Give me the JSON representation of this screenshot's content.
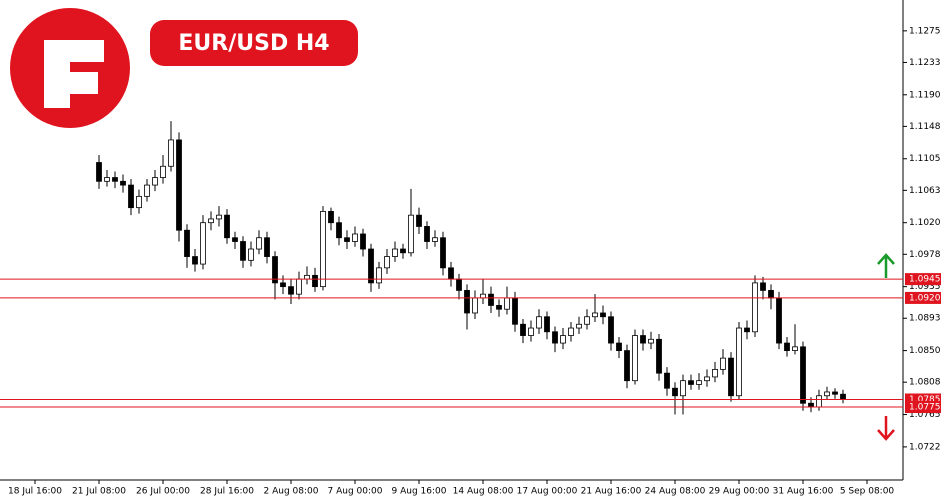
{
  "chart_data": {
    "type": "candlestick",
    "title": "EUR/USD H4",
    "categories": [
      "18 Jul 16:00",
      null,
      null,
      null,
      null,
      null,
      null,
      null,
      "21 Jul 08:00",
      null,
      null,
      null,
      null,
      null,
      null,
      null,
      "26 Jul 00:00",
      null,
      null,
      null,
      null,
      null,
      null,
      null,
      "28 Jul 16:00",
      null,
      null,
      null,
      null,
      null,
      null,
      null,
      "2 Aug 08:00",
      null,
      null,
      null,
      null,
      null,
      null,
      null,
      "7 Aug 00:00",
      null,
      null,
      null,
      null,
      null,
      null,
      null,
      "9 Aug 16:00",
      null,
      null,
      null,
      null,
      null,
      null,
      null,
      "14 Aug 08:00",
      null,
      null,
      null,
      null,
      null,
      null,
      null,
      "17 Aug 00:00",
      null,
      null,
      null,
      null,
      null,
      null,
      null,
      "21 Aug 16:00",
      null,
      null,
      null,
      null,
      null,
      null,
      null,
      "24 Aug 08:00",
      null,
      null,
      null,
      null,
      null,
      null,
      null,
      "29 Aug 00:00",
      null,
      null,
      null,
      null,
      null,
      null,
      null,
      "31 Aug 16:00",
      null,
      null,
      null,
      null,
      null,
      null,
      null,
      "5 Sep 08:00"
    ],
    "open": [
      null,
      null,
      null,
      null,
      null,
      null,
      null,
      null,
      1.11,
      1.1075,
      1.108,
      1.1075,
      1.107,
      1.104,
      1.1055,
      1.107,
      1.108,
      1.1095,
      1.113,
      1.101,
      1.0975,
      1.0965,
      1.102,
      1.1025,
      1.103,
      1.1,
      1.0995,
      1.097,
      1.0985,
      1.1,
      1.0975,
      1.094,
      1.0935,
      1.0925,
      1.0945,
      1.095,
      1.0935,
      1.1035,
      1.102,
      1.1,
      1.0995,
      1.1005,
      1.0985,
      1.094,
      1.096,
      1.0975,
      1.0985,
      1.098,
      1.103,
      1.1015,
      1.0995,
      1.1,
      1.096,
      1.0945,
      1.093,
      1.09,
      1.092,
      1.0925,
      1.091,
      1.0905,
      1.092,
      1.0885,
      1.087,
      1.088,
      1.0895,
      1.0875,
      1.086,
      1.087,
      1.088,
      1.0885,
      1.0895,
      1.09,
      1.0895,
      1.086,
      1.085,
      1.081,
      1.087,
      1.086,
      1.0865,
      1.082,
      1.08,
      1.079,
      1.081,
      1.0805,
      1.081,
      1.0815,
      1.0825,
      1.084,
      1.079,
      1.088,
      1.0875,
      1.094,
      1.093,
      1.092,
      1.086,
      1.085,
      1.0855,
      1.078,
      1.0775,
      1.079,
      1.0795,
      1.0792,
      null,
      null,
      null
    ],
    "high": [
      null,
      null,
      null,
      null,
      null,
      null,
      null,
      null,
      1.111,
      1.109,
      1.1088,
      1.1084,
      1.1078,
      1.1064,
      1.1078,
      1.109,
      1.111,
      1.1155,
      1.114,
      1.1018,
      1.0985,
      1.103,
      1.1035,
      1.1042,
      1.1038,
      1.1008,
      1.1002,
      1.0995,
      1.101,
      1.1008,
      1.0982,
      1.095,
      1.0945,
      1.0955,
      1.0962,
      1.096,
      1.1042,
      1.104,
      1.1028,
      1.101,
      1.1015,
      1.1012,
      1.0992,
      1.0968,
      1.0985,
      1.0995,
      1.0992,
      1.1065,
      1.104,
      1.1022,
      1.101,
      1.1008,
      1.0968,
      1.0952,
      1.0938,
      1.093,
      1.0945,
      1.0935,
      1.0918,
      1.0935,
      1.0928,
      1.0892,
      1.089,
      1.0905,
      1.0902,
      1.0882,
      1.088,
      1.0888,
      1.0895,
      1.0905,
      1.0925,
      1.091,
      1.0902,
      1.0868,
      1.0858,
      1.0878,
      1.0878,
      1.0875,
      1.0872,
      1.0828,
      1.0808,
      1.0818,
      1.0818,
      1.082,
      1.0825,
      1.0835,
      1.0852,
      1.0848,
      1.0888,
      1.089,
      1.095,
      1.0948,
      1.0938,
      1.0928,
      1.0868,
      1.0885,
      1.0862,
      1.0788,
      1.0798,
      1.0802,
      1.08,
      1.0798,
      null,
      null,
      null
    ],
    "low": [
      null,
      null,
      null,
      null,
      null,
      null,
      null,
      null,
      1.1065,
      1.1068,
      1.1066,
      1.106,
      1.103,
      1.1032,
      1.1048,
      1.1062,
      1.1072,
      1.1088,
      1.0995,
      1.096,
      1.0955,
      1.0958,
      1.101,
      1.1015,
      1.0992,
      1.0985,
      1.096,
      1.0962,
      1.0978,
      1.0966,
      1.0918,
      1.0925,
      1.0912,
      1.0918,
      1.0938,
      1.0928,
      1.093,
      1.101,
      1.099,
      1.0985,
      1.0988,
      1.0975,
      1.0928,
      1.0932,
      1.0952,
      1.0968,
      1.0972,
      1.0975,
      1.1005,
      1.0985,
      1.0988,
      1.095,
      1.0935,
      1.0918,
      1.0878,
      1.0892,
      1.0912,
      1.09,
      1.0895,
      1.0898,
      1.0875,
      1.086,
      1.0862,
      1.0872,
      1.0865,
      1.0848,
      1.0852,
      1.0862,
      1.0872,
      1.0878,
      1.0888,
      1.0885,
      1.085,
      1.084,
      1.08,
      1.0805,
      1.085,
      1.0852,
      1.081,
      1.079,
      1.0765,
      1.0765,
      1.0798,
      1.0798,
      1.0802,
      1.0808,
      1.0818,
      1.0782,
      1.0785,
      1.0865,
      1.0868,
      1.0918,
      1.0905,
      1.0852,
      1.0842,
      1.0845,
      1.077,
      1.0768,
      1.077,
      1.0785,
      1.0786,
      1.078,
      null,
      null,
      null
    ],
    "close": [
      null,
      null,
      null,
      null,
      null,
      null,
      null,
      null,
      1.1075,
      1.108,
      1.1075,
      1.107,
      1.104,
      1.1055,
      1.107,
      1.108,
      1.1095,
      1.113,
      1.101,
      1.0975,
      1.0965,
      1.102,
      1.1025,
      1.103,
      1.1,
      1.0995,
      1.097,
      1.0985,
      1.1,
      1.0975,
      1.094,
      1.0935,
      1.0925,
      1.0945,
      1.095,
      1.0935,
      1.1035,
      1.102,
      1.1,
      1.0995,
      1.1005,
      1.0985,
      1.094,
      1.096,
      1.0975,
      1.0985,
      1.098,
      1.103,
      1.1015,
      1.0995,
      1.1,
      1.096,
      1.0945,
      1.093,
      1.09,
      1.092,
      1.0925,
      1.091,
      1.0905,
      1.092,
      1.0885,
      1.087,
      1.088,
      1.0895,
      1.0875,
      1.086,
      1.087,
      1.088,
      1.0885,
      1.0895,
      1.09,
      1.0895,
      1.086,
      1.085,
      1.081,
      1.087,
      1.086,
      1.0865,
      1.082,
      1.08,
      1.079,
      1.081,
      1.0805,
      1.081,
      1.0815,
      1.0825,
      1.084,
      1.079,
      1.088,
      1.0875,
      1.094,
      1.093,
      1.092,
      1.086,
      1.085,
      1.0855,
      1.078,
      1.0775,
      1.079,
      1.0795,
      1.0792,
      1.0785,
      null,
      null,
      null
    ],
    "up_color": "#ffffff",
    "down_color": "#000000",
    "ylim": [
      1.0678,
      1.1316
    ],
    "yticks": [
      1.1275,
      1.1233,
      {
        "value": 1.119,
        "label": "1.1190"
      },
      1.1148,
      1.1105,
      1.1063,
      {
        "value": 1.102,
        "label": "1.1020"
      },
      1.0978,
      1.0935,
      1.0893,
      {
        "value": 1.085,
        "label": "1.0850"
      },
      1.0808,
      1.0765,
      1.0722
    ],
    "levels": [
      {
        "value": 1.0945,
        "label": "1.0945"
      },
      {
        "value": 1.092,
        "label": "1.0920"
      },
      {
        "value": 1.0785,
        "label": "1.0785"
      },
      {
        "value": 1.0775,
        "label": "1.0775"
      }
    ],
    "level_color": "#e0141e"
  }
}
